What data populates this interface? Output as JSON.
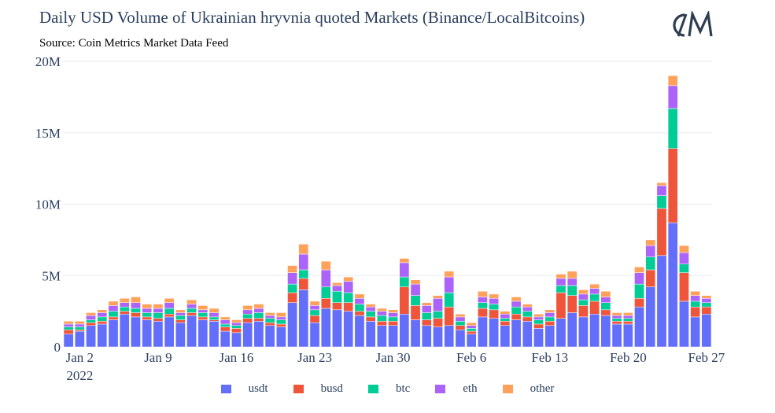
{
  "header": {
    "title": "Daily USD Volume of Ukrainian hryvnia quoted Markets (Binance/LocalBitcoins)",
    "subtitle": "Source: Coin Metrics Market Data Feed",
    "logo_text": "CM"
  },
  "colors": {
    "usdt": "#636efa",
    "busd": "#ef553b",
    "btc": "#00cc96",
    "eth": "#ab63fa",
    "other": "#ffa15a",
    "grid": "#e8ebf2",
    "axis_text": "#2a3f5f",
    "logo": "#2d3e50"
  },
  "chart_data": {
    "type": "bar",
    "stacked": true,
    "ylim": [
      0,
      20000000
    ],
    "yticks": [
      0,
      5000000,
      10000000,
      15000000,
      20000000
    ],
    "ytick_labels": [
      "0",
      "5M",
      "10M",
      "15M",
      "20M"
    ],
    "xticks": [
      "2022-01-02",
      "2022-01-09",
      "2022-01-16",
      "2022-01-23",
      "2022-01-30",
      "2022-02-06",
      "2022-02-13",
      "2022-02-20",
      "2022-02-27"
    ],
    "xtick_labels": [
      "Jan 2",
      "Jan 9",
      "Jan 16",
      "Jan 23",
      "Jan 30",
      "Feb 6",
      "Feb 13",
      "Feb 20",
      "Feb 27"
    ],
    "xtick_sublabel": "2022",
    "legend_position": "bottom-center",
    "x": [
      "2022-01-01",
      "2022-01-02",
      "2022-01-03",
      "2022-01-04",
      "2022-01-05",
      "2022-01-06",
      "2022-01-07",
      "2022-01-08",
      "2022-01-09",
      "2022-01-10",
      "2022-01-11",
      "2022-01-12",
      "2022-01-13",
      "2022-01-14",
      "2022-01-15",
      "2022-01-16",
      "2022-01-17",
      "2022-01-18",
      "2022-01-19",
      "2022-01-20",
      "2022-01-21",
      "2022-01-22",
      "2022-01-23",
      "2022-01-24",
      "2022-01-25",
      "2022-01-26",
      "2022-01-27",
      "2022-01-28",
      "2022-01-29",
      "2022-01-30",
      "2022-01-31",
      "2022-02-01",
      "2022-02-02",
      "2022-02-03",
      "2022-02-04",
      "2022-02-05",
      "2022-02-06",
      "2022-02-07",
      "2022-02-08",
      "2022-02-09",
      "2022-02-10",
      "2022-02-11",
      "2022-02-12",
      "2022-02-13",
      "2022-02-14",
      "2022-02-15",
      "2022-02-16",
      "2022-02-17",
      "2022-02-18",
      "2022-02-19",
      "2022-02-20",
      "2022-02-21",
      "2022-02-22",
      "2022-02-23",
      "2022-02-24",
      "2022-02-25",
      "2022-02-26",
      "2022-02-27"
    ],
    "series": [
      {
        "name": "usdt",
        "values": [
          900000,
          1100000,
          1500000,
          1600000,
          1900000,
          2300000,
          2100000,
          1900000,
          1800000,
          2100000,
          1700000,
          2200000,
          1900000,
          1800000,
          1100000,
          1000000,
          1700000,
          1800000,
          1500000,
          1400000,
          3100000,
          4000000,
          1700000,
          2700000,
          2600000,
          2500000,
          2200000,
          1800000,
          1500000,
          1500000,
          2300000,
          1900000,
          1500000,
          1400000,
          1500000,
          1200000,
          900000,
          2100000,
          2000000,
          1500000,
          1900000,
          1800000,
          1300000,
          1500000,
          2000000,
          2400000,
          2100000,
          2300000,
          2200000,
          1600000,
          1600000,
          2800000,
          4200000,
          6400000,
          8700000,
          3200000,
          2100000,
          2300000
        ]
      },
      {
        "name": "busd",
        "values": [
          300000,
          100000,
          200000,
          200000,
          200000,
          200000,
          300000,
          200000,
          200000,
          200000,
          200000,
          200000,
          200000,
          100000,
          300000,
          300000,
          300000,
          200000,
          200000,
          200000,
          700000,
          800000,
          500000,
          700000,
          500000,
          600000,
          300000,
          300000,
          300000,
          300000,
          1900000,
          1000000,
          400000,
          600000,
          1300000,
          300000,
          200000,
          600000,
          600000,
          300000,
          400000,
          300000,
          300000,
          300000,
          1800000,
          1200000,
          800000,
          900000,
          400000,
          200000,
          200000,
          600000,
          1200000,
          3300000,
          5200000,
          2000000,
          700000,
          500000
        ]
      },
      {
        "name": "btc",
        "values": [
          200000,
          200000,
          200000,
          300000,
          400000,
          300000,
          300000,
          300000,
          400000,
          400000,
          300000,
          300000,
          300000,
          200000,
          200000,
          200000,
          300000,
          400000,
          300000,
          300000,
          600000,
          600000,
          400000,
          800000,
          800000,
          700000,
          500000,
          400000,
          400000,
          300000,
          700000,
          700000,
          500000,
          500000,
          1000000,
          300000,
          200000,
          400000,
          400000,
          200000,
          500000,
          400000,
          300000,
          300000,
          500000,
          700000,
          400000,
          500000,
          500000,
          200000,
          200000,
          1000000,
          900000,
          900000,
          2800000,
          600000,
          400000,
          300000
        ]
      },
      {
        "name": "eth",
        "values": [
          200000,
          200000,
          300000,
          300000,
          400000,
          300000,
          400000,
          300000,
          300000,
          400000,
          200000,
          300000,
          200000,
          300000,
          300000,
          200000,
          300000,
          300000,
          200000,
          200000,
          800000,
          1100000,
          300000,
          1200000,
          400000,
          800000,
          400000,
          300000,
          300000,
          300000,
          1000000,
          800000,
          500000,
          900000,
          1100000,
          300000,
          200000,
          400000,
          400000,
          300000,
          400000,
          300000,
          200000,
          300000,
          500000,
          500000,
          400000,
          400000,
          400000,
          200000,
          200000,
          800000,
          800000,
          700000,
          1600000,
          800000,
          400000,
          300000
        ]
      },
      {
        "name": "other",
        "values": [
          200000,
          200000,
          200000,
          200000,
          300000,
          300000,
          400000,
          300000,
          300000,
          300000,
          200000,
          300000,
          300000,
          300000,
          200000,
          200000,
          300000,
          300000,
          200000,
          300000,
          500000,
          700000,
          300000,
          600000,
          200000,
          300000,
          300000,
          200000,
          200000,
          200000,
          300000,
          300000,
          200000,
          200000,
          400000,
          200000,
          200000,
          400000,
          300000,
          200000,
          300000,
          200000,
          200000,
          200000,
          300000,
          500000,
          300000,
          300000,
          400000,
          200000,
          200000,
          400000,
          400000,
          200000,
          700000,
          500000,
          300000,
          200000
        ]
      }
    ]
  }
}
